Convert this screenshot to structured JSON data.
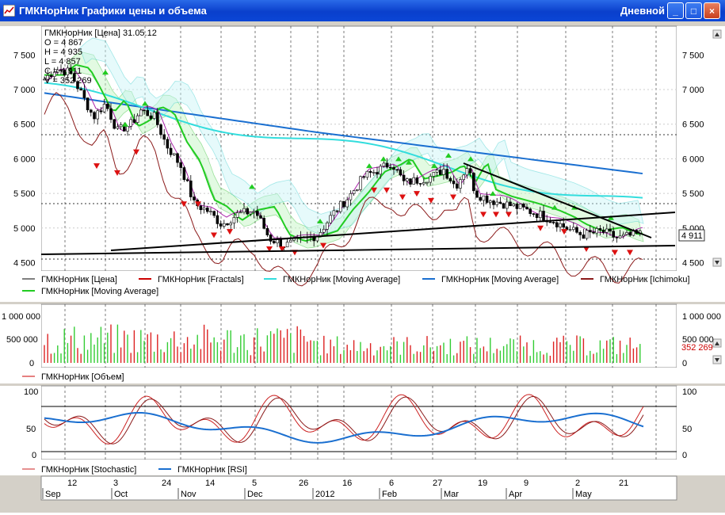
{
  "window": {
    "title": "ГМКНорНик Графики цены и объема",
    "timeframe": "Дневной",
    "buttons": {
      "minimize": "_",
      "maximize": "□",
      "close": "×"
    }
  },
  "price_panel": {
    "info": [
      "ГМКНорНик [Цена] 31.05.12",
      "O = 4 867",
      "H = 4 935",
      "L = 4 857",
      "C = 4 911",
      "V = 352 269"
    ],
    "y_ticks": [
      "7 500",
      "7 000",
      "6 500",
      "6 000",
      "5 500",
      "5 000",
      "4 500"
    ],
    "last_price_badge": "4 911",
    "legend": [
      {
        "label": "ГМКНорНик [Цена]",
        "color": "#000000"
      },
      {
        "label": "ГМКНорНик [Fractals]",
        "color": "#cc0000"
      },
      {
        "label": "ГМКНорНик [Moving Average]",
        "color": "#33dddd"
      },
      {
        "label": "ГМКНорНик [Moving Average]",
        "color": "#1a6fd0"
      },
      {
        "label": "ГМКНорНик [Ichimoku]",
        "color": "#8b1a1a"
      },
      {
        "label": "ГМКНорНик [Moving Average]",
        "color": "#22cc22"
      }
    ]
  },
  "volume_panel": {
    "y_ticks_left": [
      "1 000 000",
      "500 000",
      "0"
    ],
    "y_ticks_right": [
      "1 000 000",
      "500 000",
      "0"
    ],
    "last_volume_badge": "352 269",
    "legend": [
      {
        "label": "ГМКНорНик [Объем]",
        "color": "#cc0000"
      }
    ]
  },
  "osc_panel": {
    "y_ticks": [
      "100",
      "50",
      "0"
    ],
    "legend": [
      {
        "label": "ГМКНорНик [Stochastic]",
        "color": "#cc2222"
      },
      {
        "label": "ГМКНорНик [RSI]",
        "color": "#1a6fd0"
      }
    ]
  },
  "time_axis": {
    "days": [
      "12",
      "3",
      "24",
      "14",
      "5",
      "26",
      "16",
      "6",
      "27",
      "19",
      "9",
      "2",
      "21"
    ],
    "months": [
      "Sep",
      "Oct",
      "Nov",
      "Dec",
      "2012",
      "Feb",
      "Mar",
      "Apr",
      "May"
    ]
  },
  "colors": {
    "titlebar": "#0a3fcc",
    "up_volume": "#33cc33",
    "down_volume": "#dd2222",
    "kumo_green": "#22bb22",
    "kumo_cyan": "#33cccc"
  }
}
